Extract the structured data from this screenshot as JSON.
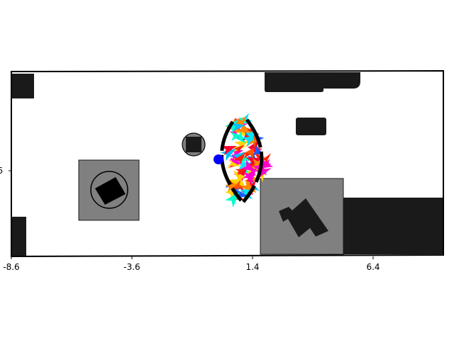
{
  "axes": {
    "x_ticks": [
      "-8.6",
      "-3.6",
      "1.4",
      "6.4"
    ],
    "y_ticks": [
      "6"
    ]
  },
  "colors": {
    "obstacle": "#1a1a1a",
    "zone": "#808080",
    "outline": "#000000",
    "robot": "#0000ff",
    "background": "#ffffff"
  },
  "robot": {
    "name": "robot-marker"
  },
  "arrow_cloud": {
    "palette": [
      "#ff2200",
      "#ff5500",
      "#ff8800",
      "#00e5ff",
      "#00bfff",
      "#1a5cff",
      "#ff00cc",
      "#00ffcc",
      "#ffd400",
      "#ff0033"
    ],
    "count": 90
  }
}
